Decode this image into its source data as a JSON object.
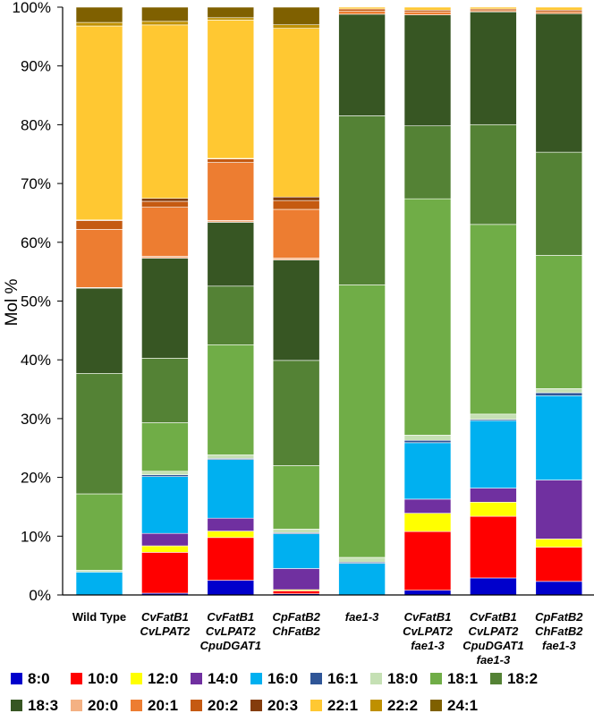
{
  "chart_data": {
    "type": "stacked-bar",
    "ylabel": "Mol %",
    "ylim": [
      0,
      100
    ],
    "yticks": [
      "0%",
      "10%",
      "20%",
      "30%",
      "40%",
      "50%",
      "60%",
      "70%",
      "80%",
      "90%",
      "100%"
    ],
    "categories": [
      {
        "lines": [
          "Wild Type"
        ],
        "italic": false
      },
      {
        "lines": [
          "CvFatB1",
          "CvLPAT2"
        ],
        "italic": true
      },
      {
        "lines": [
          "CvFatB1",
          "CvLPAT2",
          "CpuDGAT1"
        ],
        "italic": true
      },
      {
        "lines": [
          "CpFatB2",
          "ChFatB2"
        ],
        "italic": true
      },
      {
        "lines": [
          "fae1-3"
        ],
        "italic": true
      },
      {
        "lines": [
          "CvFatB1",
          "CvLPAT2",
          "fae1-3"
        ],
        "italic": true
      },
      {
        "lines": [
          "CvFatB1",
          "CvLPAT2",
          "CpuDGAT1",
          "fae1-3"
        ],
        "italic": true
      },
      {
        "lines": [
          "CpFatB2",
          "ChFatB2",
          "fae1-3"
        ],
        "italic": true
      }
    ],
    "series": [
      {
        "name": "8:0",
        "color": "#0000cc",
        "values": [
          0,
          0.3,
          2.5,
          0.2,
          0,
          0.8,
          2.9,
          2.3
        ]
      },
      {
        "name": "10:0",
        "color": "#ff0000",
        "values": [
          0,
          6.9,
          7.3,
          0.5,
          0,
          10,
          10.5,
          5.8
        ]
      },
      {
        "name": "12:0",
        "color": "#ffff00",
        "values": [
          0,
          1.1,
          1.1,
          0.2,
          0,
          3.1,
          2.4,
          1.4
        ]
      },
      {
        "name": "14:0",
        "color": "#7030a0",
        "values": [
          0,
          2.1,
          2.2,
          3.6,
          0,
          2.4,
          2.4,
          10
        ]
      },
      {
        "name": "16:0",
        "color": "#00b0f0",
        "values": [
          3.9,
          9.6,
          10,
          5.9,
          5.4,
          9.6,
          11.5,
          14.3
        ]
      },
      {
        "name": "16:1",
        "color": "#2f5597",
        "values": [
          0,
          0.3,
          0.2,
          0.2,
          0.2,
          0.4,
          0.2,
          0.5
        ]
      },
      {
        "name": "18:0",
        "color": "#c5e0b4",
        "values": [
          0.3,
          0.6,
          0.6,
          0.6,
          0.8,
          0.9,
          0.9,
          0.7
        ]
      },
      {
        "name": "18:1",
        "color": "#70ad47",
        "values": [
          13,
          8.2,
          18.8,
          10.8,
          46.4,
          40.2,
          32.3,
          22.6
        ]
      },
      {
        "name": "18:2",
        "color": "#548235",
        "values": [
          20.5,
          10.9,
          10,
          17.9,
          28.8,
          12.4,
          17,
          17.5
        ]
      },
      {
        "name": "18:3",
        "color": "#375623",
        "values": [
          14.5,
          16.9,
          10.9,
          17.1,
          17.3,
          18.9,
          19.2,
          23.5
        ]
      },
      {
        "name": "20:0",
        "color": "#f4b183",
        "values": [
          0.1,
          0.3,
          0.3,
          0.3,
          0,
          0,
          0,
          0
        ]
      },
      {
        "name": "20:1",
        "color": "#ed7d31",
        "values": [
          9.9,
          8.3,
          9.9,
          8.3,
          0.5,
          0.5,
          0.2,
          0.3
        ]
      },
      {
        "name": "20:2",
        "color": "#c55a11",
        "values": [
          1.5,
          1,
          0.6,
          1.5,
          0.4,
          0.3,
          0.3,
          0.3
        ]
      },
      {
        "name": "20:3",
        "color": "#843c0c",
        "values": [
          0.1,
          0.5,
          0.1,
          0.6,
          0,
          0,
          0,
          0
        ]
      },
      {
        "name": "22:1",
        "color": "#ffc832",
        "values": [
          33,
          29.3,
          23.6,
          28.7,
          0.3,
          0.5,
          0.3,
          0.5
        ]
      },
      {
        "name": "22:2",
        "color": "#bf9000",
        "values": [
          0.6,
          0.6,
          0.4,
          0.6,
          0,
          0,
          0,
          0
        ]
      },
      {
        "name": "24:1",
        "color": "#7f6000",
        "values": [
          2.6,
          2.4,
          1.8,
          3.0,
          0,
          0,
          0,
          0
        ]
      }
    ]
  }
}
